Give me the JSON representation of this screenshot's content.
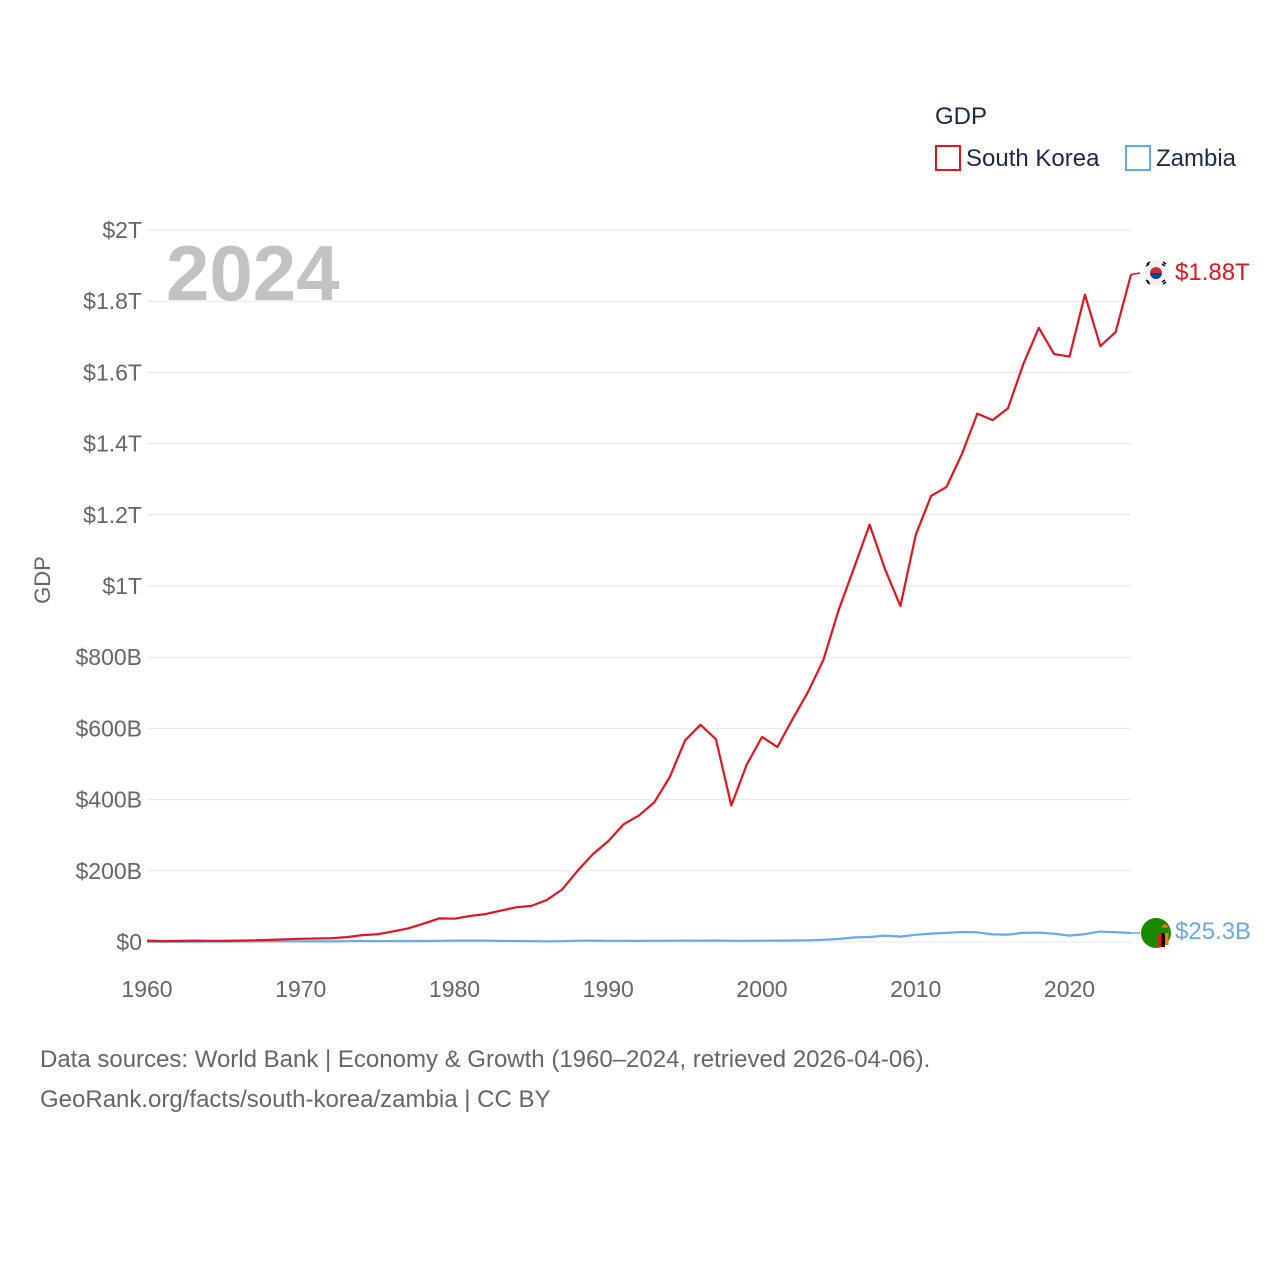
{
  "chart_data": {
    "type": "line",
    "title": "GDP",
    "ylabel": "GDP",
    "xlabel": "",
    "current_year": "2024",
    "xlim": [
      1960,
      2024
    ],
    "ylim": [
      0,
      2000000000000
    ],
    "x_ticks": [
      {
        "value": 1960,
        "label": "1960"
      },
      {
        "value": 1970,
        "label": "1970"
      },
      {
        "value": 1980,
        "label": "1980"
      },
      {
        "value": 1990,
        "label": "1990"
      },
      {
        "value": 2000,
        "label": "2000"
      },
      {
        "value": 2010,
        "label": "2010"
      },
      {
        "value": 2020,
        "label": "2020"
      }
    ],
    "y_ticks": [
      {
        "value": 0,
        "label": "$0"
      },
      {
        "value": 200000000000,
        "label": "$200B"
      },
      {
        "value": 400000000000,
        "label": "$400B"
      },
      {
        "value": 600000000000,
        "label": "$600B"
      },
      {
        "value": 800000000000,
        "label": "$800B"
      },
      {
        "value": 1000000000000,
        "label": "$1T"
      },
      {
        "value": 1200000000000,
        "label": "$1.2T"
      },
      {
        "value": 1400000000000,
        "label": "$1.4T"
      },
      {
        "value": 1600000000000,
        "label": "$1.6T"
      },
      {
        "value": 1800000000000,
        "label": "$1.8T"
      },
      {
        "value": 2000000000000,
        "label": "$2T"
      }
    ],
    "legend_position": "top-right",
    "x": [
      1960,
      1961,
      1962,
      1963,
      1964,
      1965,
      1966,
      1967,
      1968,
      1969,
      1970,
      1971,
      1972,
      1973,
      1974,
      1975,
      1976,
      1977,
      1978,
      1979,
      1980,
      1981,
      1982,
      1983,
      1984,
      1985,
      1986,
      1987,
      1988,
      1989,
      1990,
      1991,
      1992,
      1993,
      1994,
      1995,
      1996,
      1997,
      1998,
      1999,
      2000,
      2001,
      2002,
      2003,
      2004,
      2005,
      2006,
      2007,
      2008,
      2009,
      2010,
      2011,
      2012,
      2013,
      2014,
      2015,
      2016,
      2017,
      2018,
      2019,
      2020,
      2021,
      2022,
      2023,
      2024
    ],
    "series": [
      {
        "name": "South Korea",
        "color": "#e8141c",
        "end_label": "$1.88T",
        "flag": "south-korea-flag-icon",
        "values_billion": [
          4,
          2.4,
          2.8,
          3.9,
          3.5,
          3.1,
          3.8,
          4.7,
          5.9,
          7.5,
          9,
          9.9,
          10.8,
          13.9,
          19.5,
          21.9,
          29.8,
          38.4,
          51.8,
          66.2,
          65.4,
          72.9,
          78.4,
          87.9,
          97.5,
          101.3,
          117.9,
          147.6,
          199.6,
          246.9,
          283.4,
          330.6,
          355.5,
          392.7,
          463.6,
          566.6,
          610.2,
          569.8,
          383.3,
          497.5,
          576.2,
          547.7,
          627.2,
          702.7,
          793.2,
          934.7,
          1053.2,
          1172.6,
          1047.3,
          943.9,
          1144.1,
          1253.2,
          1278.4,
          1370.8,
          1484.3,
          1466,
          1499.4,
          1623.9,
          1725.4,
          1651.4,
          1644.3,
          1818.4,
          1673.9,
          1712.8,
          1875
        ]
      },
      {
        "name": "Zambia",
        "color": "#66aaee",
        "end_label": "$25.3B",
        "flag": "zambia-flag-icon",
        "values_billion": [
          0.7,
          0.7,
          0.7,
          0.7,
          0.9,
          1.1,
          1.3,
          1.6,
          1.8,
          2.1,
          1.7,
          1.6,
          1.8,
          2.2,
          2.8,
          2.6,
          2.7,
          2.5,
          2.8,
          3.2,
          3.8,
          3.9,
          3.8,
          3.2,
          2.7,
          2.2,
          1.7,
          2.3,
          3.6,
          4,
          3.3,
          3.4,
          3.2,
          3.3,
          3.7,
          3.8,
          3.6,
          4.3,
          3.5,
          3.4,
          3.6,
          3.9,
          4.2,
          4.9,
          6.2,
          8.3,
          12.8,
          14.1,
          17.9,
          15.3,
          20.3,
          23.5,
          25.5,
          28,
          27.2,
          21.3,
          20.9,
          25.9,
          26.3,
          23.3,
          18.1,
          22.1,
          29.2,
          27.6,
          25.3
        ]
      }
    ]
  },
  "footer": {
    "line1": "Data sources: World Bank | Economy & Growth (1960–2024, retrieved 2026-04-06).",
    "line2": "GeoRank.org/facts/south-korea/zambia | CC BY"
  }
}
